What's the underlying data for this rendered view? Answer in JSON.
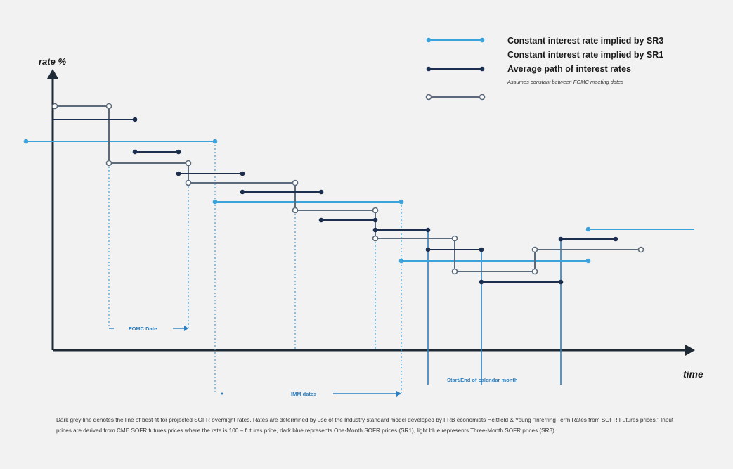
{
  "diagram": {
    "axis_y_label": "rate %",
    "axis_x_label": "time",
    "legend": [
      {
        "key": "sr3",
        "label": "Constant interest rate implied by SR3",
        "color": "#3aa3dc"
      },
      {
        "key": "sr1",
        "label": "Constant interest rate implied by SR1",
        "color": "#1c2f4f"
      },
      {
        "key": "avg",
        "label": "Average path of interest rates",
        "color": "#5b6b7c"
      }
    ],
    "legend_note": "Assumes constant between FOMC meeting dates",
    "annotations": {
      "fomc": "FOMC Date",
      "imm": "IMM dates",
      "month": "Start/End of calendar month"
    },
    "colors": {
      "light_blue": "#3aa3dc",
      "dark_blue": "#1c2f4f",
      "grey": "#5b6b7c",
      "axis": "#1f2a37",
      "background": "#f2f2f2"
    }
  },
  "footnote": "Dark grey line denotes the line of best fit for projected SOFR overnight rates. Rates are determined by use of the Industry standard model developed by FRB economists Heitfield & Young “Inferring Term Rates from SOFR Futures prices.” Input prices are derived from CME SOFR futures prices where the rate is 100 – futures price, dark blue represents One-Month SOFR prices (SR1), light blue represents Three-Month SOFR prices (SR3)."
}
